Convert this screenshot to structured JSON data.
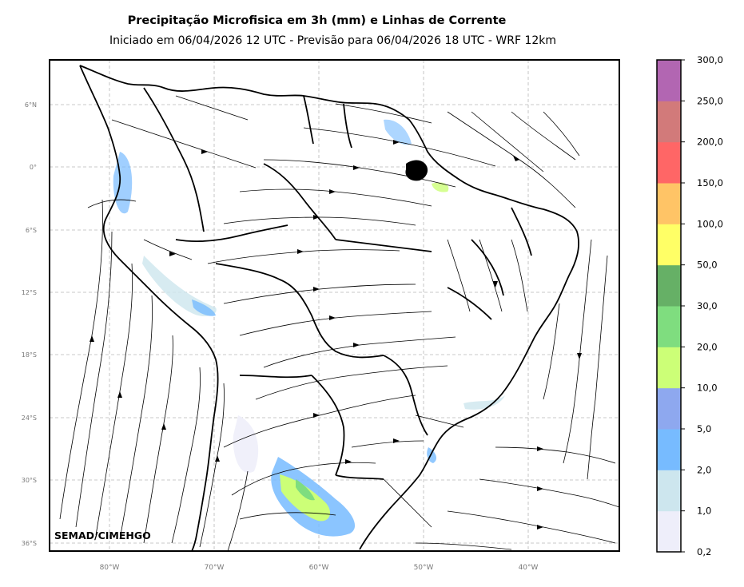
{
  "title": "Precipitação Microfisica em 3h (mm) e Linhas de Corrente",
  "subtitle": "Iniciado em 06/04/2026 12 UTC - Previsão para 06/04/2026 18 UTC - WRF 12km",
  "credit": "SEMAD/CIMEHGO",
  "lat_ticks": [
    "6°N",
    "0°",
    "6°S",
    "12°S",
    "18°S",
    "24°S",
    "30°S",
    "36°S"
  ],
  "lon_ticks": [
    "80°W",
    "70°W",
    "60°W",
    "50°W",
    "40°W"
  ],
  "colorbar": {
    "labels": [
      "0,2",
      "1,0",
      "2,0",
      "5,0",
      "10,0",
      "20,0",
      "30,0",
      "50,0",
      "100,0",
      "150,0",
      "200,0",
      "250,0",
      "300,0"
    ],
    "colors": [
      "#eeeefa",
      "#cde6ee",
      "#77bbff",
      "#8ea8ef",
      "#ccff77",
      "#7fdd7f",
      "#66b066",
      "#ffff66",
      "#ffc466",
      "#ff6666",
      "#d27a7a",
      "#b266b2"
    ]
  }
}
